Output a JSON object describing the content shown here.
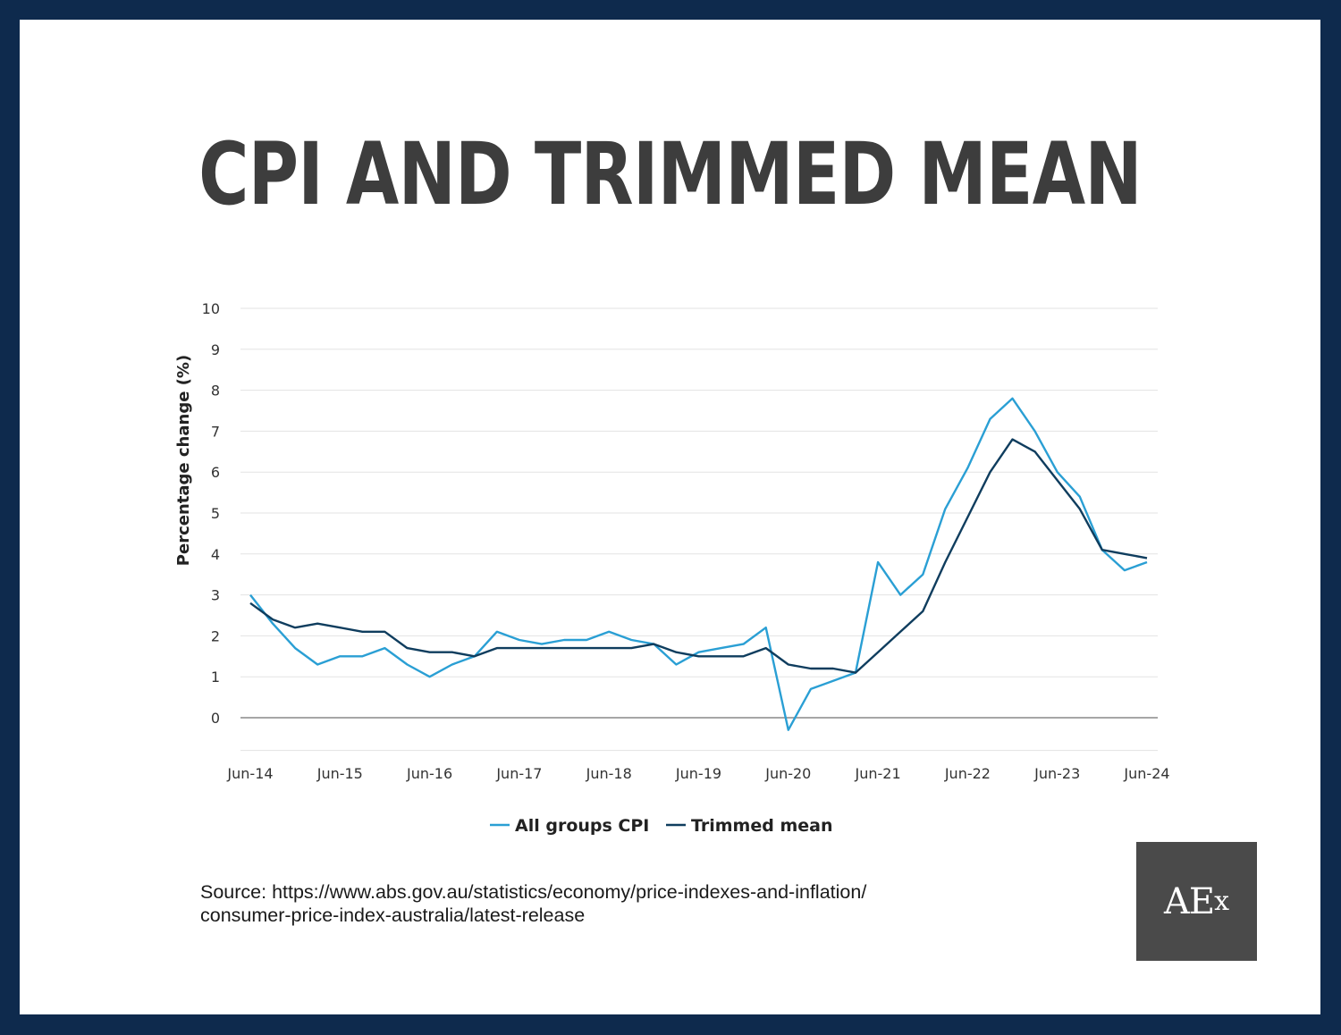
{
  "title": "CPI AND TRIMMED MEAN",
  "source": {
    "line1": "Source: https://www.abs.gov.au/statistics/economy/price-indexes-and-inflation/",
    "line2": "consumer-price-index-australia/latest-release"
  },
  "logo": {
    "text_main": "AE",
    "text_sub": "x"
  },
  "colors": {
    "frame": "#0e2a4d",
    "cpi": "#2a9fd4",
    "trimmed": "#0f3d5e",
    "grid": "#e3e3e3",
    "zero_line": "#a6a6a6",
    "title": "#3d3d3d"
  },
  "chart_data": {
    "type": "line",
    "ylabel": "Percentage change (%)",
    "xlabel": "",
    "ylim": [
      -0.8,
      10
    ],
    "y_ticks": [
      0,
      1,
      2,
      3,
      4,
      5,
      6,
      7,
      8,
      9,
      10
    ],
    "x_tick_labels": [
      {
        "label": "Jun-14",
        "index": 0
      },
      {
        "label": "Jun-15",
        "index": 4
      },
      {
        "label": "Jun-16",
        "index": 8
      },
      {
        "label": "Jun-17",
        "index": 12
      },
      {
        "label": "Jun-18",
        "index": 16
      },
      {
        "label": "Jun-19",
        "index": 20
      },
      {
        "label": "Jun-20",
        "index": 24
      },
      {
        "label": "Jun-21",
        "index": 28
      },
      {
        "label": "Jun-22",
        "index": 32
      },
      {
        "label": "Jun-23",
        "index": 36
      },
      {
        "label": "Jun-24",
        "index": 40
      }
    ],
    "x_count": 41,
    "grid": true,
    "legend_position": "bottom-center",
    "series": [
      {
        "name": "All groups CPI",
        "color_key": "cpi",
        "values": [
          3.0,
          2.3,
          1.7,
          1.3,
          1.5,
          1.5,
          1.7,
          1.3,
          1.0,
          1.3,
          1.5,
          2.1,
          1.9,
          1.8,
          1.9,
          1.9,
          2.1,
          1.9,
          1.8,
          1.3,
          1.6,
          1.7,
          1.8,
          2.2,
          -0.3,
          0.7,
          0.9,
          1.1,
          3.8,
          3.0,
          3.5,
          5.1,
          6.1,
          7.3,
          7.8,
          7.0,
          6.0,
          5.4,
          4.1,
          3.6,
          3.8
        ]
      },
      {
        "name": "Trimmed mean",
        "color_key": "trimmed",
        "values": [
          2.8,
          2.4,
          2.2,
          2.3,
          2.2,
          2.1,
          2.1,
          1.7,
          1.6,
          1.6,
          1.5,
          1.7,
          1.7,
          1.7,
          1.7,
          1.7,
          1.7,
          1.7,
          1.8,
          1.6,
          1.5,
          1.5,
          1.5,
          1.7,
          1.3,
          1.2,
          1.2,
          1.1,
          1.6,
          2.1,
          2.6,
          3.8,
          4.9,
          6.0,
          6.8,
          6.5,
          5.8,
          5.1,
          4.1,
          4.0,
          3.9
        ]
      }
    ]
  }
}
